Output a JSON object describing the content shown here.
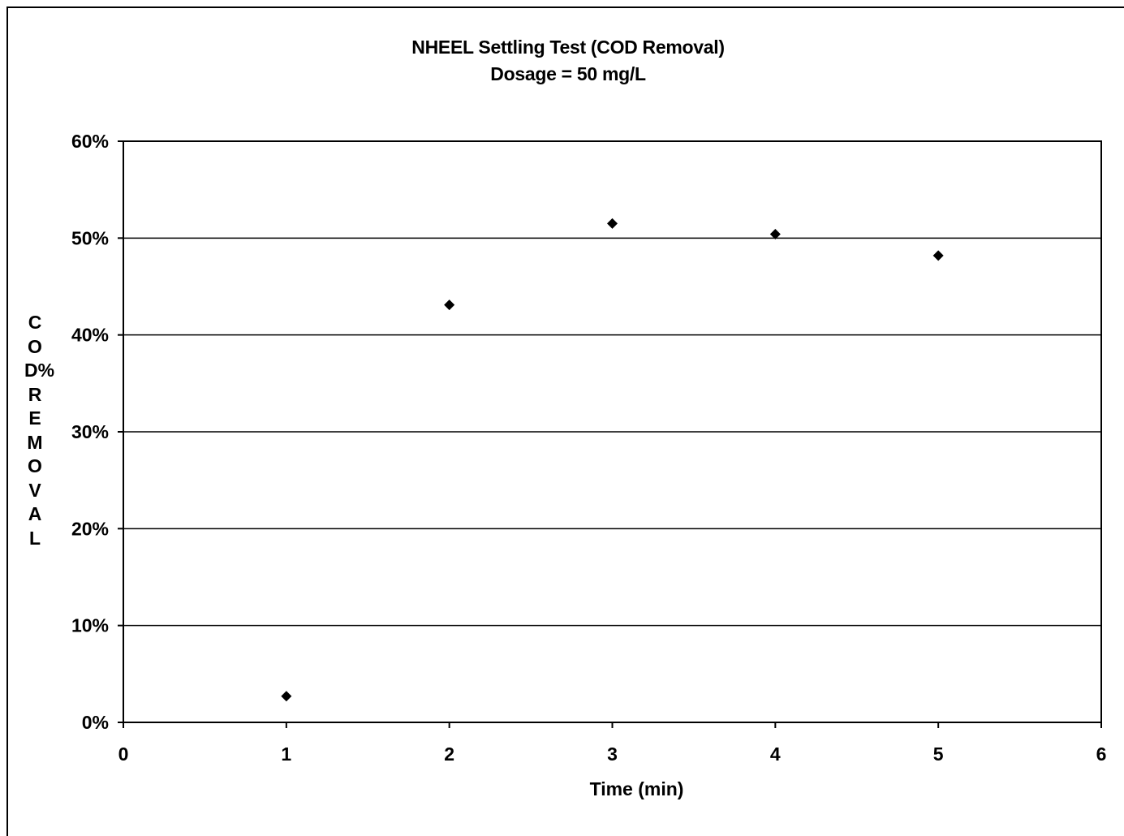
{
  "chart_data": {
    "type": "scatter",
    "title": "NHEEL Settling Test (COD Removal)",
    "subtitle": "Dosage = 50 mg/L",
    "xlabel": "Time (min)",
    "ylabel": "COD%REMOVAL",
    "xlim": [
      0,
      6
    ],
    "ylim": [
      0,
      0.6
    ],
    "x_ticks": [
      "0",
      "1",
      "2",
      "3",
      "4",
      "5",
      "6"
    ],
    "y_ticks": [
      "0%",
      "10%",
      "20%",
      "30%",
      "40%",
      "50%",
      "60%"
    ],
    "grid": "horizontal",
    "marker": "diamond",
    "marker_color": "#000000",
    "series": [
      {
        "x": [
          1,
          2,
          3,
          4,
          5
        ],
        "y": [
          0.027,
          0.431,
          0.515,
          0.504,
          0.482
        ]
      }
    ]
  }
}
